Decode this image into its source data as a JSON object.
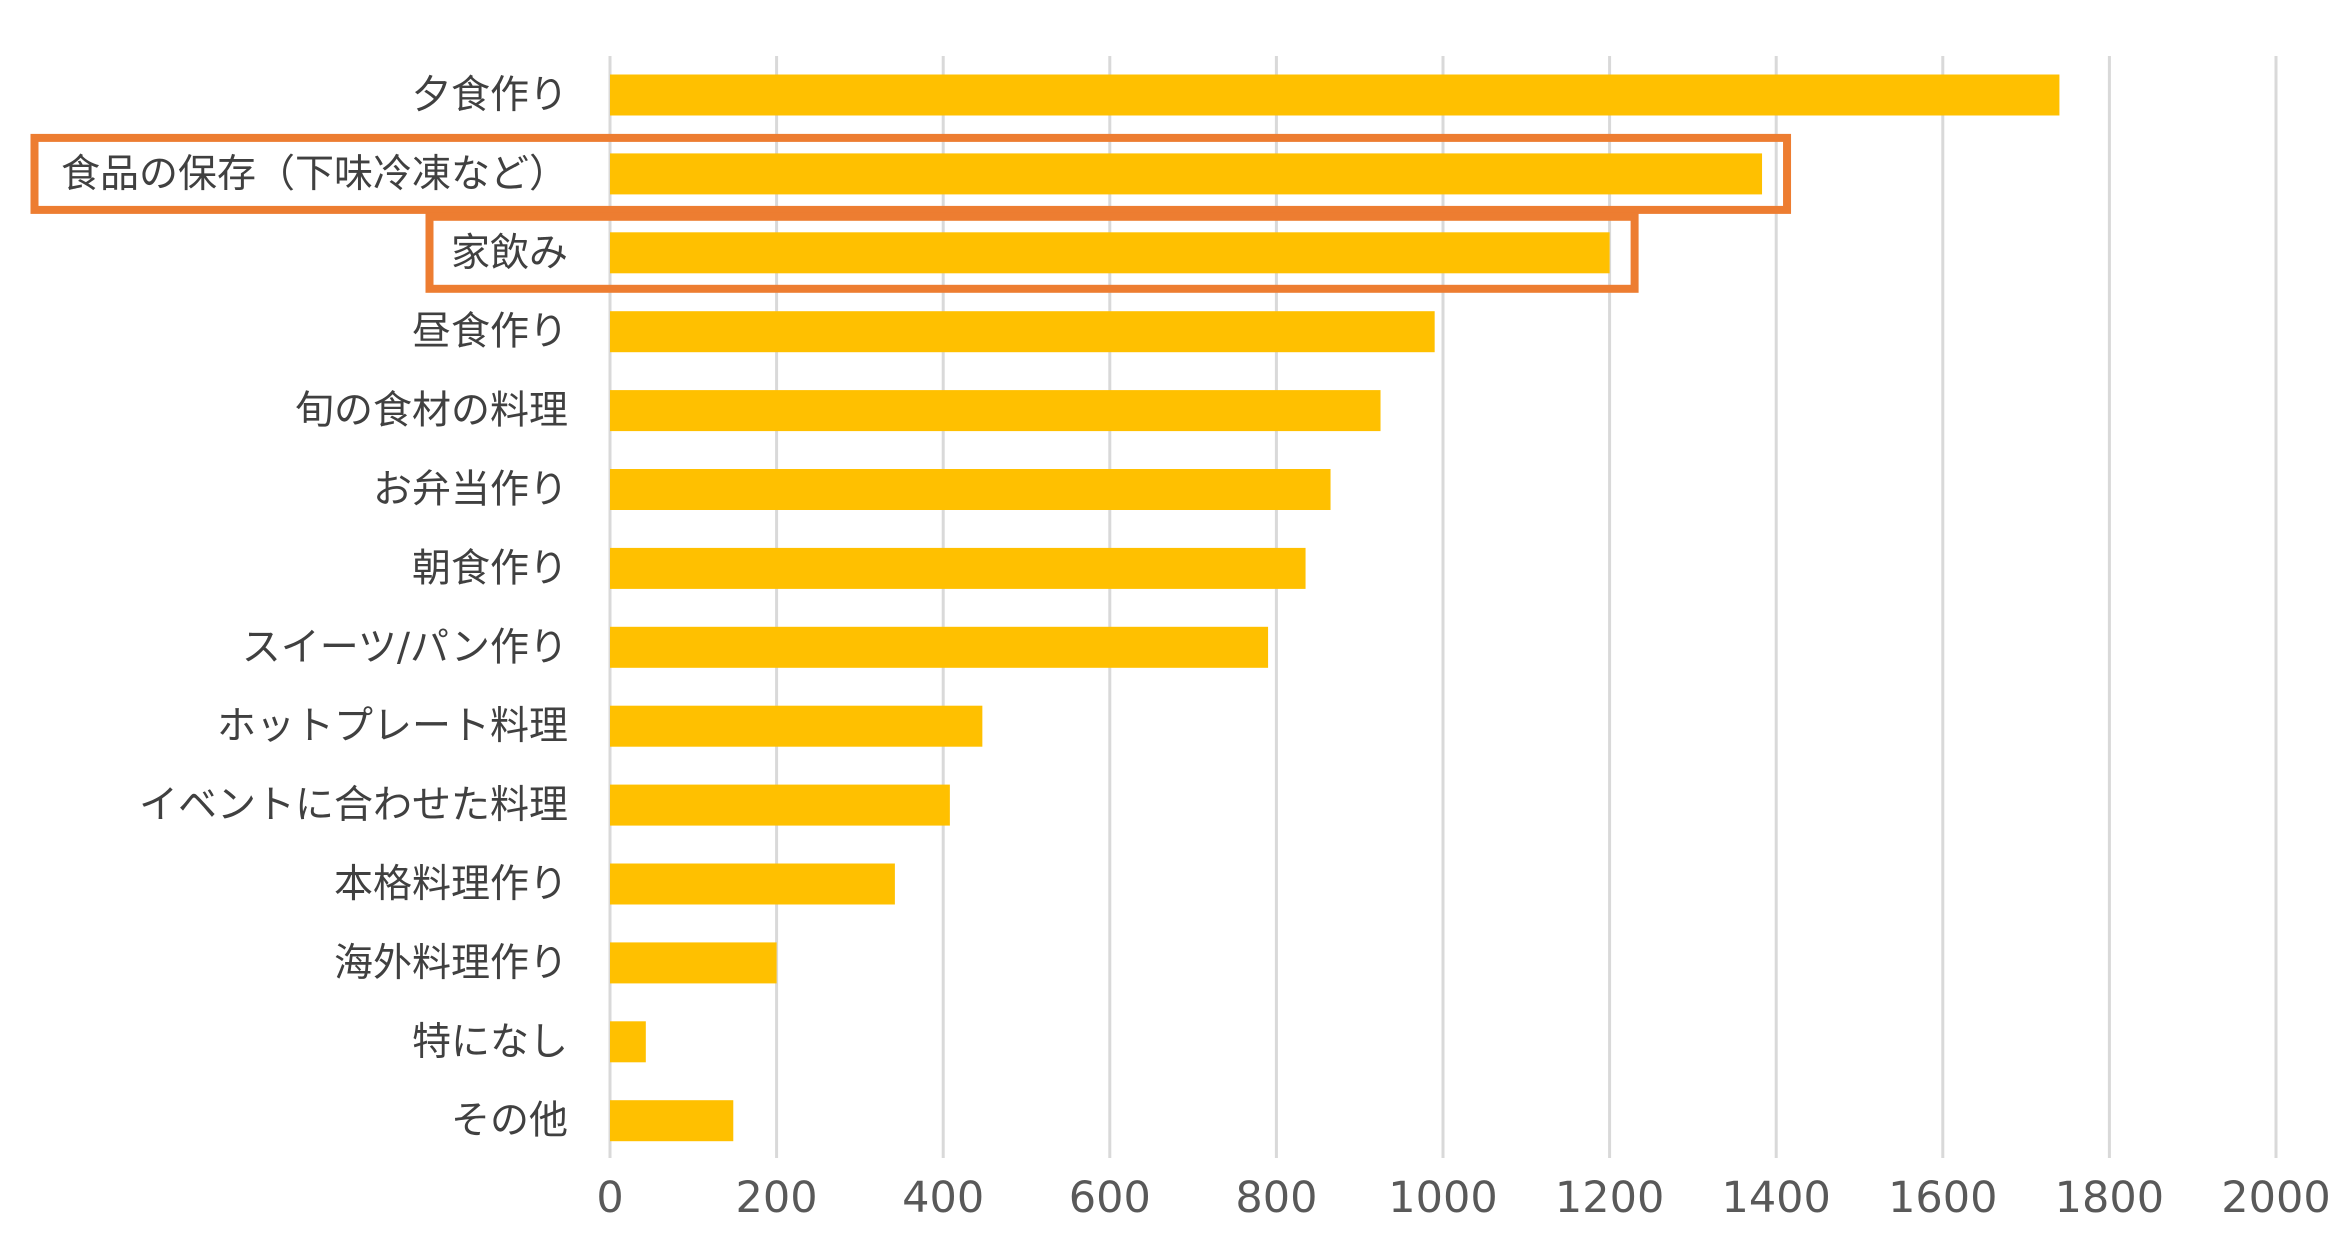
{
  "chart_data": {
    "type": "bar",
    "orientation": "horizontal",
    "categories": [
      "夕食作り",
      "食品の保存（下味冷凍など）",
      "家飲み",
      "昼食作り",
      "旬の食材の料理",
      "お弁当作り",
      "朝食作り",
      "スイーツ/パン作り",
      "ホットプレート料理",
      "イベントに合わせた料理",
      "本格料理作り",
      "海外料理作り",
      "特になし",
      "その他"
    ],
    "values": [
      1740,
      1383,
      1200,
      990,
      925,
      865,
      835,
      790,
      447,
      408,
      342,
      200,
      43,
      148
    ],
    "xlim": [
      0,
      2000
    ],
    "xticks": [
      "0",
      "200",
      "400",
      "600",
      "800",
      "1000",
      "1200",
      "1400",
      "1600",
      "1800",
      "2000"
    ],
    "grid": "vertical",
    "bar_color": "#ffc000",
    "highlighted_categories": [
      "食品の保存（下味冷凍など）",
      "家飲み"
    ],
    "highlight_color": "#ed7d31"
  }
}
